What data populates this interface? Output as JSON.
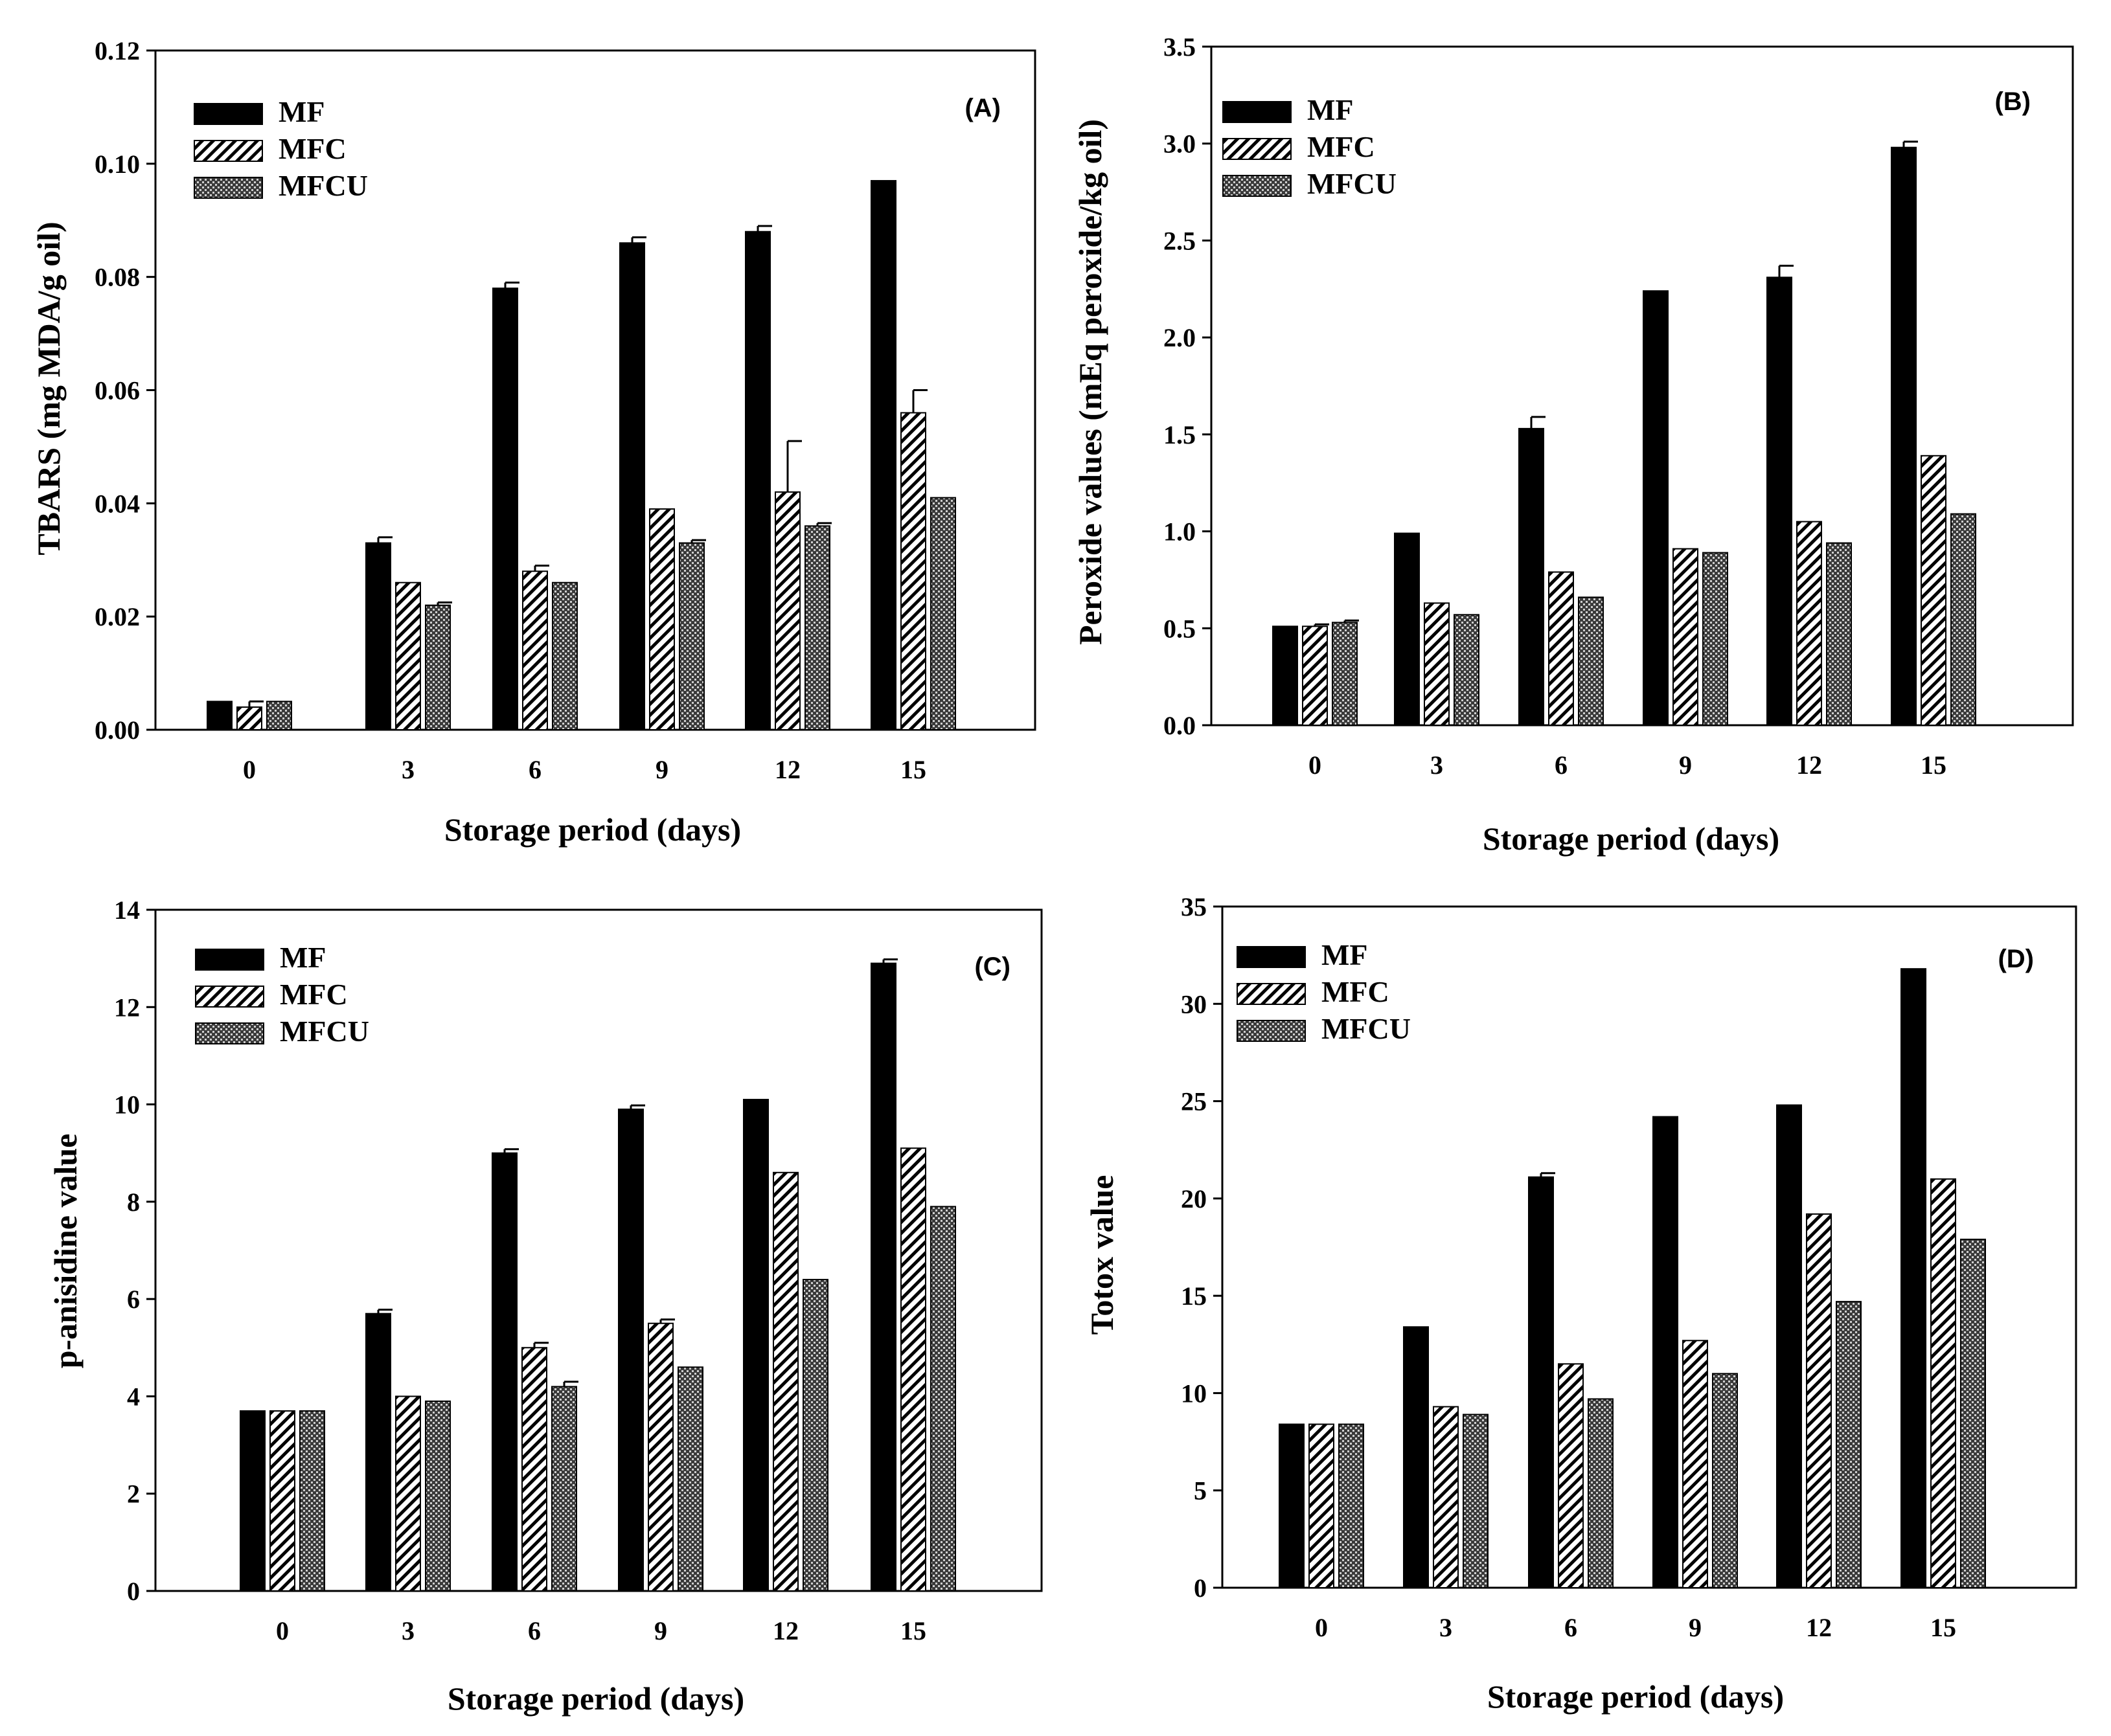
{
  "figure": {
    "x_categories": [
      "0",
      "3",
      "6",
      "9",
      "12",
      "15"
    ],
    "series_names": [
      "MF",
      "MFC",
      "MFCU"
    ]
  },
  "chart_data": [
    {
      "type": "bar",
      "panel_label": "(A)",
      "title": "",
      "xlabel": "Storage period (days)",
      "ylabel": "TBARS (mg MDA/g oil)",
      "categories": [
        "0",
        "3",
        "6",
        "9",
        "12",
        "15"
      ],
      "ylim": [
        0,
        0.12
      ],
      "yticks": [
        "0.00",
        "0.02",
        "0.04",
        "0.06",
        "0.08",
        "0.10",
        "0.12"
      ],
      "legend_position": "top-left",
      "series": [
        {
          "name": "MF",
          "fill": "solid",
          "values": [
            0.005,
            0.033,
            0.078,
            0.086,
            0.088,
            0.097
          ],
          "errors": [
            0,
            0.001,
            0.001,
            0.001,
            0.001,
            0
          ]
        },
        {
          "name": "MFC",
          "fill": "hatch",
          "values": [
            0.004,
            0.026,
            0.028,
            0.039,
            0.042,
            0.056
          ],
          "errors": [
            0.001,
            0,
            0.001,
            0,
            0.009,
            0.004
          ]
        },
        {
          "name": "MFCU",
          "fill": "crosshatch",
          "values": [
            0.005,
            0.022,
            0.026,
            0.033,
            0.036,
            0.041
          ],
          "errors": [
            0,
            0.0005,
            0,
            0.0005,
            0.0005,
            0
          ]
        }
      ]
    },
    {
      "type": "bar",
      "panel_label": "(B)",
      "title": "",
      "xlabel": "Storage period (days)",
      "ylabel": "Peroxide values (mEq peroxide/kg oil)",
      "categories": [
        "0",
        "3",
        "6",
        "9",
        "12",
        "15"
      ],
      "ylim": [
        0,
        3.5
      ],
      "yticks": [
        "0.0",
        "0.5",
        "1.0",
        "1.5",
        "2.0",
        "2.5",
        "3.0",
        "3.5"
      ],
      "legend_position": "top-left",
      "series": [
        {
          "name": "MF",
          "fill": "solid",
          "values": [
            0.51,
            0.99,
            1.53,
            2.24,
            2.31,
            2.98
          ],
          "errors": [
            0,
            0,
            0.06,
            0,
            0.06,
            0.03
          ]
        },
        {
          "name": "MFC",
          "fill": "hatch",
          "values": [
            0.51,
            0.63,
            0.79,
            0.91,
            1.05,
            1.39
          ],
          "errors": [
            0.01,
            0,
            0,
            0,
            0,
            0
          ]
        },
        {
          "name": "MFCU",
          "fill": "crosshatch",
          "values": [
            0.53,
            0.57,
            0.66,
            0.89,
            0.94,
            1.09
          ],
          "errors": [
            0.01,
            0,
            0,
            0,
            0,
            0
          ]
        }
      ]
    },
    {
      "type": "bar",
      "panel_label": "(C)",
      "title": "",
      "xlabel": "Storage period (days)",
      "ylabel": "p-anisidine value",
      "categories": [
        "0",
        "3",
        "6",
        "9",
        "12",
        "15"
      ],
      "ylim": [
        0,
        14
      ],
      "yticks": [
        "0",
        "2",
        "4",
        "6",
        "8",
        "10",
        "12",
        "14"
      ],
      "legend_position": "top-left",
      "series": [
        {
          "name": "MF",
          "fill": "solid",
          "values": [
            3.7,
            5.7,
            9.0,
            9.9,
            10.1,
            12.9
          ],
          "errors": [
            0,
            0.08,
            0.08,
            0.08,
            0,
            0.08
          ]
        },
        {
          "name": "MFC",
          "fill": "hatch",
          "values": [
            3.7,
            4.0,
            5.0,
            5.5,
            8.6,
            9.1
          ],
          "errors": [
            0,
            0,
            0.1,
            0.08,
            0,
            0
          ]
        },
        {
          "name": "MFCU",
          "fill": "crosshatch",
          "values": [
            3.7,
            3.9,
            4.2,
            4.6,
            6.4,
            7.9
          ],
          "errors": [
            0,
            0,
            0.1,
            0,
            0,
            0
          ]
        }
      ]
    },
    {
      "type": "bar",
      "panel_label": "(D)",
      "title": "",
      "xlabel": "Storage period (days)",
      "ylabel": "Totox value",
      "categories": [
        "0",
        "3",
        "6",
        "9",
        "12",
        "15"
      ],
      "ylim": [
        0,
        35
      ],
      "yticks": [
        "0",
        "5",
        "10",
        "15",
        "20",
        "25",
        "30",
        "35"
      ],
      "legend_position": "top-left",
      "series": [
        {
          "name": "MF",
          "fill": "solid",
          "values": [
            8.4,
            13.4,
            21.1,
            24.2,
            24.8,
            31.8
          ],
          "errors": [
            0,
            0,
            0.2,
            0,
            0,
            0
          ]
        },
        {
          "name": "MFC",
          "fill": "hatch",
          "values": [
            8.4,
            9.3,
            11.5,
            12.7,
            19.2,
            21.0
          ],
          "errors": [
            0,
            0,
            0,
            0,
            0,
            0
          ]
        },
        {
          "name": "MFCU",
          "fill": "crosshatch",
          "values": [
            8.4,
            8.9,
            9.7,
            11.0,
            14.7,
            17.9
          ],
          "errors": [
            0,
            0,
            0,
            0,
            0,
            0
          ]
        }
      ]
    }
  ]
}
